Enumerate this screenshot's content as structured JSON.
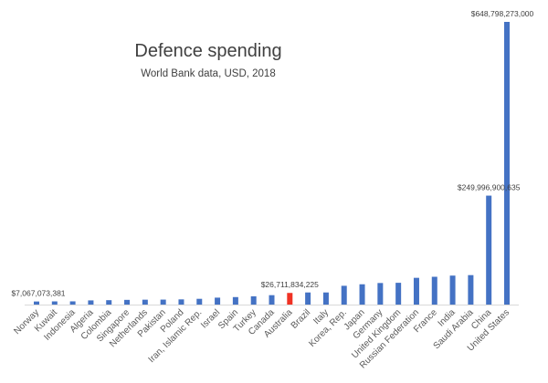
{
  "chart_data": {
    "type": "bar",
    "title": "Defence spending",
    "subtitle": "World Bank data, USD, 2018",
    "xlabel": "",
    "ylabel": "",
    "ylim": [
      0,
      650000000000
    ],
    "grid": false,
    "legend": "none",
    "categories": [
      "Norway",
      "Kuwait",
      "Indonesia",
      "Algeria",
      "Colombia",
      "Singapore",
      "Netherlands",
      "Pakistan",
      "Poland",
      "Iran, Islamic Rep.",
      "Israel",
      "Spain",
      "Turkey",
      "Canada",
      "Australia",
      "Brazil",
      "Italy",
      "Korea, Rep.",
      "Japan",
      "Germany",
      "United Kingdom",
      "Russian Federation",
      "France",
      "India",
      "Saudi Arabia",
      "China",
      "United States"
    ],
    "values": [
      7067073381,
      7300000000,
      7400000000,
      9600000000,
      10100000000,
      10800000000,
      11200000000,
      11400000000,
      11900000000,
      13200000000,
      15900000000,
      17200000000,
      19000000000,
      21600000000,
      26711834225,
      27800000000,
      27800000000,
      43100000000,
      46600000000,
      49500000000,
      50000000000,
      61400000000,
      63800000000,
      66500000000,
      67600000000,
      249996900635,
      648798273000
    ],
    "data_labels": [
      {
        "category": "Norway",
        "text": "$7,067,073,381"
      },
      {
        "category": "Australia",
        "text": "$26,711,834,225"
      },
      {
        "category": "China",
        "text": "$249,996,900,635"
      },
      {
        "category": "United States",
        "text": "$648,798,273,000"
      }
    ],
    "colors": {
      "bar": "#4472c4",
      "highlight": "#f03224",
      "axis": "#d9d9d9"
    },
    "highlight": "Australia"
  }
}
